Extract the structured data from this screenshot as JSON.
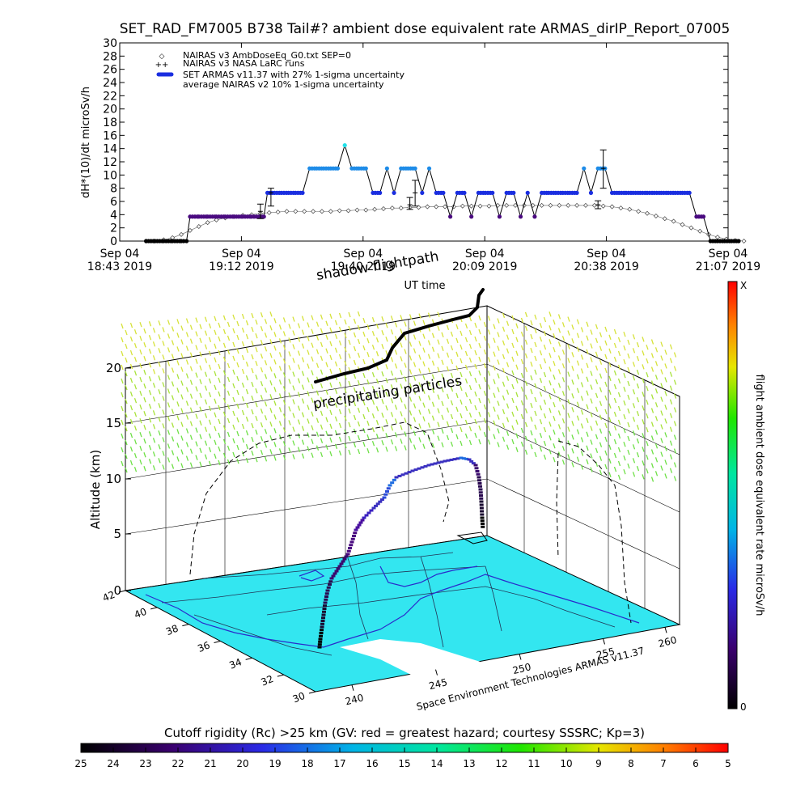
{
  "title": "SET_RAD_FM7005  B738 Tail#? ambient dose equivalent rate ARMAS_dirIP_Report_07005",
  "chart_data": [
    {
      "type": "line",
      "ylabel": "dH*(10)/dt microSv/h",
      "xlabel": "UT time",
      "ylim": [
        0,
        30
      ],
      "yticks": [
        "0",
        "2",
        "4",
        "6",
        "8",
        "10",
        "12",
        "14",
        "16",
        "18",
        "20",
        "22",
        "24",
        "26",
        "28",
        "30"
      ],
      "xticks": [
        {
          "date": "Sep 04",
          "time": "18:43 2019"
        },
        {
          "date": "Sep 04",
          "time": "19:12 2019"
        },
        {
          "date": "Sep 04",
          "time": "19:40 2019"
        },
        {
          "date": "Sep 04",
          "time": "20:09 2019"
        },
        {
          "date": "Sep 04",
          "time": "20:38 2019"
        },
        {
          "date": "Sep 04",
          "time": "21:07 2019"
        }
      ],
      "legend": [
        "NAIRAS v3 AmbDoseEq_G0.txt SEP=0",
        "NAIRAS v3 NASA LaRC runs",
        "SET ARMAS v11.37 with 27% 1-sigma uncertainty",
        "average NAIRAS v2 10% 1-sigma uncertainty"
      ],
      "legend_position": "top-left",
      "series": [
        {
          "name": "SET ARMAS v11.37 with 27% 1-sigma uncertainty",
          "x_minutes": [
            15,
            20,
            25,
            30,
            35,
            38,
            40,
            45,
            50,
            55,
            60,
            65,
            70,
            75,
            80,
            82,
            84,
            88,
            92,
            96,
            100,
            104,
            108,
            112,
            116,
            120,
            124,
            128,
            132,
            136,
            140,
            144,
            148,
            152,
            156,
            160,
            164,
            168,
            172,
            176,
            180,
            184,
            188,
            192,
            196,
            200,
            204,
            208,
            212,
            216,
            220,
            224,
            228,
            232,
            236,
            240,
            244,
            248,
            252,
            256,
            260,
            264,
            268,
            272,
            276,
            280,
            284,
            288,
            292,
            296,
            300,
            304,
            308,
            312,
            316,
            320,
            324,
            328,
            332,
            336,
            340,
            344,
            348,
            352
          ],
          "values": [
            0,
            0,
            0,
            0,
            0,
            0,
            3.7,
            3.7,
            3.7,
            3.7,
            3.7,
            3.7,
            3.7,
            3.7,
            3.7,
            3.7,
            7.3,
            7.3,
            7.3,
            7.3,
            7.3,
            7.3,
            11,
            11,
            11,
            11,
            11,
            14.5,
            11,
            11,
            11,
            7.3,
            7.3,
            11,
            7.3,
            11,
            11,
            11,
            7.3,
            11,
            7.3,
            7.3,
            3.7,
            7.3,
            7.3,
            3.7,
            7.3,
            7.3,
            7.3,
            3.7,
            7.3,
            7.3,
            3.7,
            7.3,
            3.7,
            7.3,
            7.3,
            7.3,
            7.3,
            7.3,
            7.3,
            11,
            7.3,
            11,
            11,
            7.3,
            7.3,
            7.3,
            7.3,
            7.3,
            7.3,
            7.3,
            7.3,
            7.3,
            7.3,
            7.3,
            7.3,
            3.7,
            3.7,
            0,
            0,
            0,
            0,
            0
          ]
        },
        {
          "name": "NAIRAS v3 AmbDoseEq_G0.txt SEP=0",
          "x_minutes": [
            15,
            20,
            25,
            30,
            35,
            40,
            45,
            50,
            55,
            60,
            65,
            70,
            75,
            80,
            85,
            90,
            95,
            100,
            105,
            110,
            115,
            120,
            125,
            130,
            135,
            140,
            145,
            150,
            155,
            160,
            165,
            170,
            175,
            180,
            185,
            190,
            195,
            200,
            205,
            210,
            215,
            220,
            225,
            230,
            235,
            240,
            245,
            250,
            255,
            260,
            265,
            270,
            275,
            280,
            285,
            290,
            295,
            300,
            305,
            310,
            315,
            320,
            325,
            330,
            335,
            340,
            345,
            350,
            355
          ],
          "values": [
            0,
            0,
            0.2,
            0.5,
            1,
            1.6,
            2.2,
            2.8,
            3.2,
            3.5,
            3.7,
            3.9,
            4,
            4.2,
            4.3,
            4.4,
            4.5,
            4.5,
            4.5,
            4.5,
            4.5,
            4.5,
            4.6,
            4.6,
            4.7,
            4.7,
            4.8,
            4.9,
            5,
            5,
            5.1,
            5.1,
            5.2,
            5.2,
            5.2,
            5.2,
            5.3,
            5.3,
            5.3,
            5.3,
            5.4,
            5.4,
            5.4,
            5.4,
            5.4,
            5.4,
            5.4,
            5.4,
            5.4,
            5.4,
            5.4,
            5.4,
            5.3,
            5.2,
            5,
            4.8,
            4.5,
            4.2,
            3.8,
            3.4,
            3,
            2.5,
            2,
            1.5,
            1,
            0.6,
            0.3,
            0.1,
            0
          ]
        }
      ],
      "errorbars": [
        {
          "x_minutes": 80,
          "value": 4.5,
          "low": 3.4,
          "high": 5.6
        },
        {
          "x_minutes": 86,
          "value": 7.3,
          "low": 5.3,
          "high": 8
        },
        {
          "x_minutes": 165,
          "value": 5.5,
          "low": 4.8,
          "high": 6.6
        },
        {
          "x_minutes": 168,
          "value": 7.3,
          "low": 5.3,
          "high": 9.2
        },
        {
          "x_minutes": 272,
          "value": 5.5,
          "low": 4.9,
          "high": 6.1
        },
        {
          "x_minutes": 275,
          "value": 11,
          "low": 8,
          "high": 13.8
        }
      ]
    },
    {
      "type": "scatter",
      "ylabel": "Altitude (km)",
      "zticks": [
        "0",
        "5",
        "10",
        "15",
        "20"
      ],
      "lat_ticks": [
        "42",
        "40",
        "38",
        "36",
        "34",
        "32",
        "30"
      ],
      "lon_ticks": [
        "240",
        "245",
        "250",
        "255",
        "260"
      ],
      "annotations": [
        "shadow flightpath",
        "precipitating particles",
        "Space Environment Technologies ARMAS v11.37"
      ],
      "right_colorbar": {
        "label": "flight ambient dose equivalent rate microSv/h",
        "top": "X",
        "bottom": "0"
      },
      "bottom_colorbar": {
        "label": "Cutoff rigidity (Rc) >25 km (GV: red = greatest hazard; courtesy SSSRC; Kp=3)",
        "ticks": [
          "25",
          "24",
          "23",
          "22",
          "21",
          "20",
          "19",
          "18",
          "17",
          "16",
          "15",
          "14",
          "13",
          "12",
          "11",
          "10",
          "9",
          "8",
          "7",
          "6",
          "5"
        ]
      },
      "colors": {
        "map": "#33e6f0",
        "track_low": "#2a0a50",
        "track_mid": "#3a30c0",
        "track_high": "#1e6ce0"
      }
    }
  ]
}
